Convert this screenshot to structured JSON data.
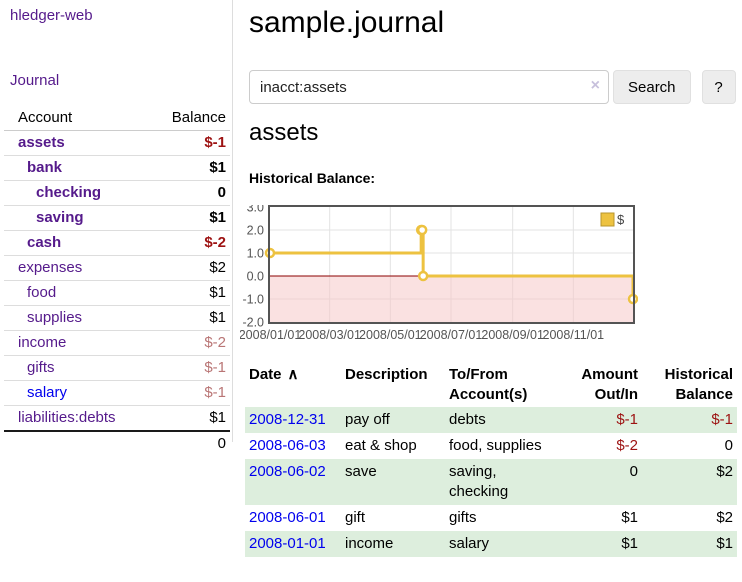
{
  "palette": {
    "link_purple": "#551A8B",
    "link_blue": "#0000EE",
    "negative_strong": "#9d1212",
    "negative_soft": "#b97575",
    "row_stripe_green": "#ddeedd",
    "chart_line_yellow": "#EDC240",
    "chart_negative_fill": "#f5c8c8",
    "chart_zero_line": "#8b0000"
  },
  "sidebar": {
    "app_title": "hledger-web",
    "journal_link": "Journal",
    "accounts": {
      "header": {
        "account": "Account",
        "balance": "Balance"
      },
      "rows": [
        {
          "name": "assets",
          "depth": 0,
          "bold": true,
          "balance": "$-1",
          "balance_class": "neg-strong"
        },
        {
          "name": "bank",
          "depth": 1,
          "bold": true,
          "balance": "$1",
          "balance_class": "pos"
        },
        {
          "name": "checking",
          "depth": 2,
          "bold": true,
          "balance": "0",
          "balance_class": "pos"
        },
        {
          "name": "saving",
          "depth": 2,
          "bold": true,
          "balance": "$1",
          "balance_class": "pos"
        },
        {
          "name": "cash",
          "depth": 1,
          "bold": true,
          "balance": "$-2",
          "balance_class": "neg-strong"
        },
        {
          "name": "expenses",
          "depth": 0,
          "bold": false,
          "balance": "$2",
          "balance_class": "pos"
        },
        {
          "name": "food",
          "depth": 1,
          "bold": false,
          "balance": "$1",
          "balance_class": "pos"
        },
        {
          "name": "supplies",
          "depth": 1,
          "bold": false,
          "balance": "$1",
          "balance_class": "pos"
        },
        {
          "name": "income",
          "depth": 0,
          "bold": false,
          "balance": "$-2",
          "balance_class": "neg-soft"
        },
        {
          "name": "gifts",
          "depth": 1,
          "bold": false,
          "balance": "$-1",
          "balance_class": "neg-soft"
        },
        {
          "name": "salary",
          "depth": 1,
          "bold": false,
          "balance": "$-1",
          "balance_class": "neg-soft",
          "link_class": "blue"
        },
        {
          "name": "liabilities:debts",
          "depth": 0,
          "bold": false,
          "balance": "$1",
          "balance_class": "pos"
        }
      ],
      "total": "0"
    }
  },
  "main": {
    "title": "sample.journal",
    "search": {
      "value": "inacct:assets",
      "clear_icon": "×",
      "search_button": "Search",
      "help_button": "?"
    },
    "account_heading": "assets",
    "chart_title": "Historical Balance:"
  },
  "chart_data": {
    "type": "line",
    "step": true,
    "title": "Historical Balance",
    "series": [
      {
        "name": "$",
        "color": "#EDC240",
        "points": [
          [
            "2008-01-01",
            1
          ],
          [
            "2008-06-01",
            2
          ],
          [
            "2008-06-02",
            2
          ],
          [
            "2008-06-03",
            0
          ],
          [
            "2008-12-31",
            -1
          ]
        ]
      }
    ],
    "xlim": [
      "2008-01-01",
      "2008-12-31"
    ],
    "ylim": [
      -2,
      3
    ],
    "y_ticks": [
      3,
      2,
      1,
      0,
      -1,
      -2
    ],
    "x_ticks": [
      "2008/01/01",
      "2008/03/01",
      "2008/05/01",
      "2008/07/01",
      "2008/09/01",
      "2008/11/01"
    ],
    "grid": true,
    "legend": {
      "label": "$",
      "position": "top-right"
    },
    "negative_region_fill": "#f5c8c8",
    "zero_line_color": "#8b0000"
  },
  "register": {
    "header": {
      "date": "Date",
      "sort_arrow": "∧",
      "description": "Description",
      "accounts": "To/From Account(s)",
      "amount": "Amount Out/In",
      "balance": "Historical Balance"
    },
    "rows": [
      {
        "date": "2008-12-31",
        "description": "pay off",
        "accounts": "debts",
        "amount": "$-1",
        "amount_class": "neg",
        "balance": "$-1",
        "balance_class": "neg"
      },
      {
        "date": "2008-06-03",
        "description": "eat & shop",
        "accounts": "food, supplies",
        "amount": "$-2",
        "amount_class": "neg",
        "balance": "0",
        "balance_class": "pos"
      },
      {
        "date": "2008-06-02",
        "description": "save",
        "accounts": "saving, checking",
        "amount": "0",
        "amount_class": "pos",
        "balance": "$2",
        "balance_class": "pos"
      },
      {
        "date": "2008-06-01",
        "description": "gift",
        "accounts": "gifts",
        "amount": "$1",
        "amount_class": "pos",
        "balance": "$2",
        "balance_class": "pos"
      },
      {
        "date": "2008-01-01",
        "description": "income",
        "accounts": "salary",
        "amount": "$1",
        "amount_class": "pos",
        "balance": "$1",
        "balance_class": "pos"
      }
    ]
  }
}
